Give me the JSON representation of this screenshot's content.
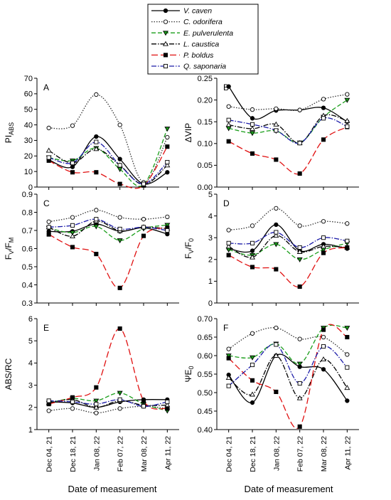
{
  "legend": [
    {
      "name": "V. caven",
      "color": "#000000",
      "dash": "",
      "marker": "circle",
      "fill": "#000000"
    },
    {
      "name": "C. odorifera",
      "color": "#333333",
      "dash": "1.5,2",
      "marker": "circle",
      "fill": "#ffffff"
    },
    {
      "name": "E. pulverulenta",
      "color": "#1a9e1a",
      "dash": "6,3",
      "marker": "triangle-down",
      "fill": "#1a9e1a"
    },
    {
      "name": "L. caustica",
      "color": "#000000",
      "dash": "7,2,1.5,2",
      "marker": "triangle-up",
      "fill": "#ffffff"
    },
    {
      "name": "P. boldus",
      "color": "#e01010",
      "dash": "9,4",
      "marker": "square",
      "fill": "#000000"
    },
    {
      "name": "Q. saponaria",
      "color": "#1a1aa8",
      "dash": "7,2,1.5,2",
      "marker": "square",
      "fill": "#ffffff"
    }
  ],
  "x_axis_title": "Date of measurement",
  "chart_data": [
    {
      "type": "line",
      "panel": "A",
      "ylabel_main": "PI",
      "ylabel_sub": "ABS",
      "categories": [
        "Dec 04, 21",
        "Dec 18, 21",
        "Jan 08, 22",
        "Feb 07, 22",
        "Mar 08, 22",
        "Apr 11, 22"
      ],
      "ylim": [
        0,
        70
      ],
      "yticks": [
        0,
        10,
        20,
        30,
        40,
        50,
        60,
        70
      ],
      "yticklabels": [
        "0",
        "10",
        "20",
        "30",
        "40",
        "50",
        "60",
        "70"
      ],
      "series": [
        {
          "name": "V. caven",
          "values": [
            17.5,
            13,
            32.5,
            18,
            2,
            9.5
          ]
        },
        {
          "name": "C. odorifera",
          "values": [
            38,
            39.5,
            59.5,
            40,
            3,
            32
          ]
        },
        {
          "name": "E. pulverulenta",
          "values": [
            19,
            17,
            25,
            11.5,
            1.5,
            37.5
          ]
        },
        {
          "name": "L. caustica",
          "values": [
            23.5,
            15.5,
            24.5,
            14,
            1.5,
            14
          ]
        },
        {
          "name": "P. boldus",
          "values": [
            17,
            9.5,
            9.5,
            2,
            1,
            26
          ]
        },
        {
          "name": "Q. saponaria",
          "values": [
            19,
            15.5,
            29,
            14,
            2,
            16
          ]
        }
      ]
    },
    {
      "type": "line",
      "panel": "B",
      "ylabel_main": "ΔVIP",
      "ylabel_sub": "",
      "categories": [
        "Dec 04, 21",
        "Dec 18, 21",
        "Jan 08, 22",
        "Feb 07, 22",
        "Mar 08, 22",
        "Apr 11, 22"
      ],
      "ylim": [
        0,
        0.25
      ],
      "yticks": [
        0,
        0.05,
        0.1,
        0.15,
        0.2,
        0.25
      ],
      "yticklabels": [
        "0.00",
        "0.05",
        "0.10",
        "0.15",
        "0.20",
        "0.25"
      ],
      "series": [
        {
          "name": "V. caven",
          "values": [
            0.231,
            0.158,
            0.176,
            0.177,
            0.182,
            0.15
          ]
        },
        {
          "name": "C. odorifera",
          "values": [
            0.185,
            0.178,
            0.18,
            0.177,
            0.202,
            0.213
          ]
        },
        {
          "name": "E. pulverulenta",
          "values": [
            0.135,
            0.124,
            0.129,
            0.102,
            0.161,
            0.2
          ]
        },
        {
          "name": "L. caustica",
          "values": [
            0.143,
            0.134,
            0.144,
            0.101,
            0.164,
            0.152
          ]
        },
        {
          "name": "P. boldus",
          "values": [
            0.105,
            0.077,
            0.063,
            0.031,
            0.109,
            0.138
          ]
        },
        {
          "name": "Q. saponaria",
          "values": [
            0.154,
            0.144,
            0.13,
            0.101,
            0.158,
            0.139
          ]
        }
      ]
    },
    {
      "type": "line",
      "panel": "C",
      "ylabel_main": "F",
      "ylabel_sub": "V",
      "ylabel_mid": "/F",
      "ylabel_sub2": "M",
      "categories": [
        "Dec 04, 21",
        "Dec 18, 21",
        "Jan 08, 22",
        "Feb 07, 22",
        "Mar 08, 22",
        "Apr 11, 22"
      ],
      "ylim": [
        0.3,
        0.9
      ],
      "yticks": [
        0.3,
        0.4,
        0.5,
        0.6,
        0.7,
        0.8,
        0.9
      ],
      "yticklabels": [
        "0.3",
        "0.4",
        "0.5",
        "0.6",
        "0.7",
        "0.8",
        "0.9"
      ],
      "series": [
        {
          "name": "V. caven",
          "values": [
            0.695,
            0.695,
            0.735,
            0.695,
            0.715,
            0.68
          ]
        },
        {
          "name": "C. odorifera",
          "values": [
            0.748,
            0.772,
            0.812,
            0.772,
            0.762,
            0.775
          ]
        },
        {
          "name": "E. pulverulenta",
          "values": [
            0.713,
            0.688,
            0.722,
            0.645,
            0.71,
            0.73
          ]
        },
        {
          "name": "L. caustica",
          "values": [
            0.718,
            0.668,
            0.752,
            0.698,
            0.718,
            0.71
          ]
        },
        {
          "name": "P. boldus",
          "values": [
            0.678,
            0.608,
            0.57,
            0.383,
            0.67,
            0.715
          ]
        },
        {
          "name": "Q. saponaria",
          "values": [
            0.718,
            0.728,
            0.762,
            0.708,
            0.718,
            0.7
          ]
        }
      ]
    },
    {
      "type": "line",
      "panel": "D",
      "ylabel_main": "F",
      "ylabel_sub": "V",
      "ylabel_mid": "/F",
      "ylabel_sub2": "0",
      "categories": [
        "Dec 04, 21",
        "Dec 18, 21",
        "Jan 08, 22",
        "Feb 07, 22",
        "Mar 08, 22",
        "Apr 11, 22"
      ],
      "ylim": [
        0,
        5
      ],
      "yticks": [
        0,
        1,
        2,
        3,
        4,
        5
      ],
      "yticklabels": [
        "0",
        "1",
        "2",
        "3",
        "4",
        "5"
      ],
      "series": [
        {
          "name": "V. caven",
          "values": [
            2.5,
            2.4,
            3.6,
            2.4,
            2.7,
            2.5
          ]
        },
        {
          "name": "C. odorifera",
          "values": [
            3.35,
            3.55,
            4.35,
            3.55,
            3.75,
            3.65
          ]
        },
        {
          "name": "E. pulverulenta",
          "values": [
            2.45,
            2.2,
            2.7,
            2.0,
            2.45,
            2.75
          ]
        },
        {
          "name": "L. caustica",
          "values": [
            2.6,
            2.1,
            3.1,
            2.35,
            2.6,
            2.55
          ]
        },
        {
          "name": "P. boldus",
          "values": [
            2.2,
            1.65,
            1.55,
            0.75,
            2.3,
            2.55
          ]
        },
        {
          "name": "Q. saponaria",
          "values": [
            2.75,
            2.75,
            3.25,
            2.55,
            3.0,
            2.85
          ]
        }
      ]
    },
    {
      "type": "line",
      "panel": "E",
      "ylabel_main": "ABS/RC",
      "ylabel_sub": "",
      "categories": [
        "Dec 04, 21",
        "Dec 18, 21",
        "Jan 08, 22",
        "Feb 07, 22",
        "Mar 08, 22",
        "Apr 11, 22"
      ],
      "ylim": [
        1,
        6
      ],
      "yticks": [
        1,
        2,
        3,
        4,
        5,
        6
      ],
      "yticklabels": [
        "1",
        "2",
        "3",
        "4",
        "5",
        "6"
      ],
      "series": [
        {
          "name": "V. caven",
          "values": [
            2.25,
            2.2,
            2.0,
            2.25,
            2.35,
            2.35
          ]
        },
        {
          "name": "C. odorifera",
          "values": [
            1.85,
            1.95,
            1.75,
            1.95,
            2.05,
            1.95
          ]
        },
        {
          "name": "E. pulverulenta",
          "values": [
            2.2,
            2.4,
            2.3,
            2.65,
            2.15,
            1.85
          ]
        },
        {
          "name": "L. caustica",
          "values": [
            2.2,
            2.35,
            2.0,
            2.3,
            2.1,
            2.1
          ]
        },
        {
          "name": "P. boldus",
          "values": [
            2.15,
            2.45,
            2.9,
            5.55,
            2.3,
            1.95
          ]
        },
        {
          "name": "Q. saponaria",
          "values": [
            2.3,
            2.25,
            2.15,
            2.35,
            2.05,
            2.25
          ]
        }
      ]
    },
    {
      "type": "line",
      "panel": "F",
      "ylabel_main": "ΨE",
      "ylabel_sub": "0",
      "categories": [
        "Dec 04, 21",
        "Dec 18, 21",
        "Jan 08, 22",
        "Feb 07, 22",
        "Mar 08, 22",
        "Apr 11, 22"
      ],
      "ylim": [
        0.4,
        0.7
      ],
      "yticks": [
        0.4,
        0.45,
        0.5,
        0.55,
        0.6,
        0.65,
        0.7
      ],
      "yticklabels": [
        "0.40",
        "0.45",
        "0.50",
        "0.55",
        "0.60",
        "0.65",
        "0.70"
      ],
      "series": [
        {
          "name": "V. caven",
          "values": [
            0.548,
            0.473,
            0.6,
            0.57,
            0.563,
            0.478
          ]
        },
        {
          "name": "C. odorifera",
          "values": [
            0.618,
            0.66,
            0.675,
            0.645,
            0.65,
            0.603
          ]
        },
        {
          "name": "E. pulverulenta",
          "values": [
            0.6,
            0.595,
            0.632,
            0.578,
            0.675,
            0.675
          ]
        },
        {
          "name": "L. caustica",
          "values": [
            0.54,
            0.495,
            0.6,
            0.485,
            0.59,
            0.513
          ]
        },
        {
          "name": "P. boldus",
          "values": [
            0.593,
            0.533,
            0.502,
            0.408,
            0.67,
            0.65
          ]
        },
        {
          "name": "Q. saponaria",
          "values": [
            0.518,
            0.575,
            0.63,
            0.525,
            0.625,
            0.568
          ]
        }
      ]
    }
  ]
}
